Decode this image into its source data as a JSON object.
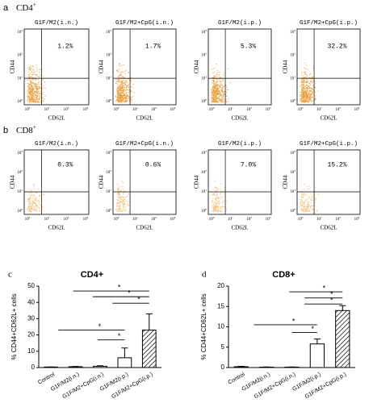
{
  "flow_panels": [
    {
      "label": "a",
      "title": "CD4",
      "title_sup": "+",
      "plots": [
        {
          "title": "G1F/M2(i.n.)",
          "percent": "1.2%"
        },
        {
          "title": "G1F/M2+CpG(i.n.)",
          "percent": "1.7%"
        },
        {
          "title": "G1F/M2(i.p.)",
          "percent": "5.3%"
        },
        {
          "title": "G1F/M2+CpG(i.p.)",
          "percent": "32.2%"
        }
      ]
    },
    {
      "label": "b",
      "title": "CD8",
      "title_sup": "+",
      "plots": [
        {
          "title": "G1F/M2(i.n.)",
          "percent": "0.3%"
        },
        {
          "title": "G1F/M2+CpG(i.n.)",
          "percent": "0.6%"
        },
        {
          "title": "G1F/M2(i.p.)",
          "percent": "7.0%"
        },
        {
          "title": "G1F/M2+CpG(i.p.)",
          "percent": "15.2%"
        }
      ]
    }
  ],
  "flow_x_label": "CD62L",
  "flow_y_label": "CD44",
  "flow_tick_base": "10",
  "flow_tick_exponents": [
    "0",
    "1",
    "2",
    "3"
  ],
  "chart_data": [
    {
      "type": "bar",
      "panel_label": "c",
      "title": "CD4+",
      "y_label": "% CD44+CD62L+ cells",
      "categories": [
        "Control",
        "G1F/M2(i.n.)",
        "G1F/M2+CpG(i.n.)",
        "G1F/M2(i.p.)",
        "G1F/M2+CpG(i.p.)"
      ],
      "values": [
        0.3,
        0.5,
        0.8,
        6,
        23
      ],
      "errors": [
        0.1,
        0.2,
        0.3,
        6,
        10
      ],
      "ylim": [
        0,
        50
      ],
      "yticks": [
        0,
        10,
        20,
        30,
        40,
        50
      ],
      "significance_labels": [
        "*",
        "*",
        "*",
        "*",
        "*"
      ]
    },
    {
      "type": "bar",
      "panel_label": "d",
      "title": "CD8+",
      "y_label": "% CD44+CD62L+ cells",
      "categories": [
        "Control",
        "G1F/M2(i.n.)",
        "G1F/M2+CpG(i.n.)",
        "G1F/M2(i.p.)",
        "G1F/M2+CpG(i.p.)"
      ],
      "values": [
        0.2,
        0.1,
        0.1,
        5.8,
        14
      ],
      "errors": [
        0.1,
        0.05,
        0.05,
        1.2,
        1.2
      ],
      "ylim": [
        0,
        20
      ],
      "yticks": [
        0,
        5,
        10,
        15,
        20
      ],
      "significance_labels": [
        "*",
        "*",
        "*",
        "*",
        "*"
      ]
    }
  ]
}
